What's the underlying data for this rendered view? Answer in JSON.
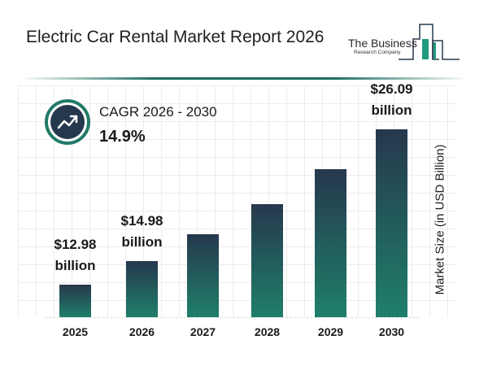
{
  "header": {
    "title": "Electric Car Rental Market Report 2026",
    "logo_line1": "The Business",
    "logo_line2": "Research Company"
  },
  "cagr": {
    "label": "CAGR 2026 - 2030",
    "value": "14.9%",
    "icon": "trend-up-arrow-icon"
  },
  "colors": {
    "bar_top": "#26384d",
    "bar_bottom": "#1f7f6a",
    "accent": "#1f7a66"
  },
  "chart_data": {
    "type": "bar",
    "categories": [
      "2025",
      "2026",
      "2027",
      "2028",
      "2029",
      "2030"
    ],
    "values": [
      12.98,
      14.98,
      17.21,
      19.78,
      22.72,
      26.09
    ],
    "data_labels": [
      {
        "index": 0,
        "value": "$12.98",
        "unit": "billion"
      },
      {
        "index": 1,
        "value": "$14.98",
        "unit": "billion"
      },
      {
        "index": 5,
        "value": "$26.09",
        "unit": "billion"
      }
    ],
    "title": "",
    "xlabel": "",
    "ylabel": "Market Size (in USD Billion)",
    "grid": true
  }
}
